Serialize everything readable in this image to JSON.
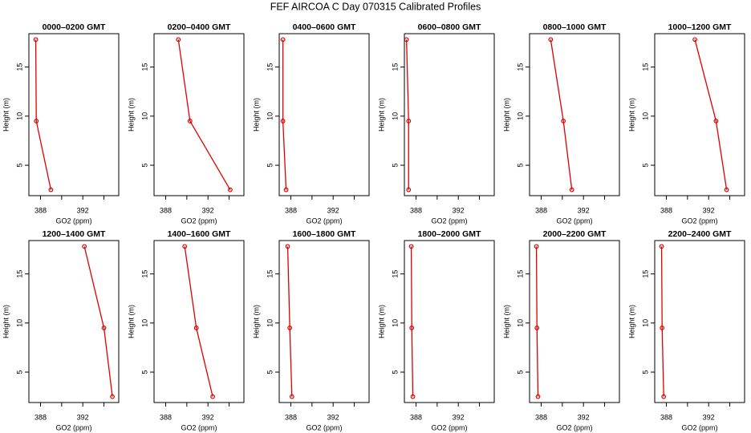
{
  "title": "FEF AIRCOA C  Day 070315  Calibrated Profiles",
  "chart_data": [
    {
      "type": "line",
      "title": "0000–0200 GMT",
      "xlabel": "GO2 (ppm)",
      "ylabel": "Height (m)",
      "color": "#dd0000",
      "x": [
        388.98,
        387.6,
        387.55
      ],
      "y": [
        2.5,
        9.5,
        17.8
      ],
      "xlim": [
        386.9,
        395.4
      ],
      "ylim": [
        1.9,
        18.4
      ],
      "xticks": [
        388,
        392
      ],
      "xminorticks": [
        390,
        394
      ],
      "yticks": [
        5,
        10,
        15
      ]
    },
    {
      "type": "line",
      "title": "0200–0400 GMT",
      "xlabel": "GO2 (ppm)",
      "ylabel": "Height (m)",
      "color": "#dd0000",
      "x": [
        394.1,
        390.3,
        389.2
      ],
      "y": [
        2.5,
        9.5,
        17.8
      ],
      "xlim": [
        386.9,
        395.4
      ],
      "ylim": [
        1.9,
        18.4
      ],
      "xticks": [
        388,
        392
      ],
      "xminorticks": [
        390,
        394
      ],
      "yticks": [
        5,
        10,
        15
      ]
    },
    {
      "type": "line",
      "title": "0400–0600 GMT",
      "xlabel": "GO2 (ppm)",
      "ylabel": "Height (m)",
      "color": "#dd0000",
      "x": [
        387.55,
        387.25,
        387.25
      ],
      "y": [
        2.5,
        9.5,
        17.8
      ],
      "xlim": [
        386.9,
        395.4
      ],
      "ylim": [
        1.9,
        18.4
      ],
      "xticks": [
        388,
        392
      ],
      "xminorticks": [
        390,
        394
      ],
      "yticks": [
        5,
        10,
        15
      ]
    },
    {
      "type": "line",
      "title": "0600–0800 GMT",
      "xlabel": "GO2 (ppm)",
      "ylabel": "Height (m)",
      "color": "#dd0000",
      "x": [
        387.3,
        387.3,
        387.1
      ],
      "y": [
        2.5,
        9.5,
        17.8
      ],
      "xlim": [
        386.9,
        395.4
      ],
      "ylim": [
        1.9,
        18.4
      ],
      "xticks": [
        388,
        392
      ],
      "xminorticks": [
        390,
        394
      ],
      "yticks": [
        5,
        10,
        15
      ]
    },
    {
      "type": "line",
      "title": "0800–1000 GMT",
      "xlabel": "GO2 (ppm)",
      "ylabel": "Height (m)",
      "color": "#dd0000",
      "x": [
        390.9,
        390.1,
        388.9
      ],
      "y": [
        2.5,
        9.5,
        17.8
      ],
      "xlim": [
        386.9,
        395.4
      ],
      "ylim": [
        1.9,
        18.4
      ],
      "xticks": [
        388,
        392
      ],
      "xminorticks": [
        390,
        394
      ],
      "yticks": [
        5,
        10,
        15
      ]
    },
    {
      "type": "line",
      "title": "1000–1200 GMT",
      "xlabel": "GO2 (ppm)",
      "ylabel": "Height (m)",
      "color": "#dd0000",
      "x": [
        393.7,
        392.7,
        390.7
      ],
      "y": [
        2.5,
        9.5,
        17.8
      ],
      "xlim": [
        386.9,
        395.4
      ],
      "ylim": [
        1.9,
        18.4
      ],
      "xticks": [
        388,
        392
      ],
      "xminorticks": [
        390,
        394
      ],
      "yticks": [
        5,
        10,
        15
      ]
    },
    {
      "type": "line",
      "title": "1200–1400 GMT",
      "xlabel": "GO2 (ppm)",
      "ylabel": "Height (m)",
      "color": "#dd0000",
      "x": [
        394.8,
        394.0,
        392.15
      ],
      "y": [
        2.5,
        9.5,
        17.8
      ],
      "xlim": [
        386.9,
        395.4
      ],
      "ylim": [
        1.9,
        18.4
      ],
      "xticks": [
        388,
        392
      ],
      "xminorticks": [
        390,
        394
      ],
      "yticks": [
        5,
        10,
        15
      ]
    },
    {
      "type": "line",
      "title": "1400–1600 GMT",
      "xlabel": "GO2 (ppm)",
      "ylabel": "Height (m)",
      "color": "#dd0000",
      "x": [
        392.45,
        390.9,
        389.8
      ],
      "y": [
        2.5,
        9.5,
        17.8
      ],
      "xlim": [
        386.9,
        395.4
      ],
      "ylim": [
        1.9,
        18.4
      ],
      "xticks": [
        388,
        392
      ],
      "xminorticks": [
        390,
        394
      ],
      "yticks": [
        5,
        10,
        15
      ]
    },
    {
      "type": "line",
      "title": "1600–1800 GMT",
      "xlabel": "GO2 (ppm)",
      "ylabel": "Height (m)",
      "color": "#dd0000",
      "x": [
        388.1,
        387.9,
        387.7
      ],
      "y": [
        2.5,
        9.5,
        17.8
      ],
      "xlim": [
        386.9,
        395.4
      ],
      "ylim": [
        1.9,
        18.4
      ],
      "xticks": [
        388,
        392
      ],
      "xminorticks": [
        390,
        394
      ],
      "yticks": [
        5,
        10,
        15
      ]
    },
    {
      "type": "line",
      "title": "1800–2000 GMT",
      "xlabel": "GO2 (ppm)",
      "ylabel": "Height (m)",
      "color": "#dd0000",
      "x": [
        387.7,
        387.6,
        387.55
      ],
      "y": [
        2.5,
        9.5,
        17.8
      ],
      "xlim": [
        386.9,
        395.4
      ],
      "ylim": [
        1.9,
        18.4
      ],
      "xticks": [
        388,
        392
      ],
      "xminorticks": [
        390,
        394
      ],
      "yticks": [
        5,
        10,
        15
      ]
    },
    {
      "type": "line",
      "title": "2000–2200 GMT",
      "xlabel": "GO2 (ppm)",
      "ylabel": "Height (m)",
      "color": "#dd0000",
      "x": [
        387.7,
        387.6,
        387.55
      ],
      "y": [
        2.5,
        9.5,
        17.8
      ],
      "xlim": [
        386.9,
        395.4
      ],
      "ylim": [
        1.9,
        18.4
      ],
      "xticks": [
        388,
        392
      ],
      "xminorticks": [
        390,
        394
      ],
      "yticks": [
        5,
        10,
        15
      ]
    },
    {
      "type": "line",
      "title": "2200–2400 GMT",
      "xlabel": "GO2 (ppm)",
      "ylabel": "Height (m)",
      "color": "#dd0000",
      "x": [
        387.75,
        387.6,
        387.55
      ],
      "y": [
        2.5,
        9.5,
        17.8
      ],
      "xlim": [
        386.9,
        395.4
      ],
      "ylim": [
        1.9,
        18.4
      ],
      "xticks": [
        388,
        392
      ],
      "xminorticks": [
        390,
        394
      ],
      "yticks": [
        5,
        10,
        15
      ]
    }
  ]
}
